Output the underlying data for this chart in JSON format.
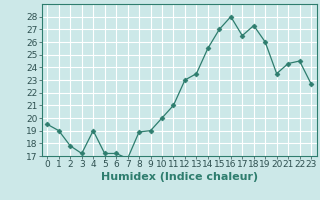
{
  "x": [
    0,
    1,
    2,
    3,
    4,
    5,
    6,
    7,
    8,
    9,
    10,
    11,
    12,
    13,
    14,
    15,
    16,
    17,
    18,
    19,
    20,
    21,
    22,
    23
  ],
  "y": [
    19.5,
    19.0,
    17.8,
    17.2,
    19.0,
    17.2,
    17.2,
    16.8,
    18.9,
    19.0,
    20.0,
    21.0,
    23.0,
    23.5,
    25.5,
    27.0,
    28.0,
    26.5,
    27.3,
    26.0,
    23.5,
    24.3,
    24.5,
    22.7
  ],
  "xlabel": "Humidex (Indice chaleur)",
  "ylim": [
    17,
    29
  ],
  "xlim": [
    -0.5,
    23.5
  ],
  "yticks": [
    17,
    18,
    19,
    20,
    21,
    22,
    23,
    24,
    25,
    26,
    27,
    28
  ],
  "xticks": [
    0,
    1,
    2,
    3,
    4,
    5,
    6,
    7,
    8,
    9,
    10,
    11,
    12,
    13,
    14,
    15,
    16,
    17,
    18,
    19,
    20,
    21,
    22,
    23
  ],
  "line_color": "#2e7d6e",
  "marker": "D",
  "marker_size": 2.5,
  "bg_color": "#cce8e8",
  "grid_color": "#ffffff",
  "xlabel_fontsize": 8,
  "tick_fontsize": 6.5
}
